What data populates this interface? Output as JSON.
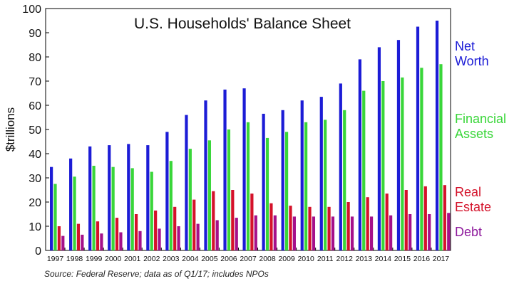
{
  "chart_data": {
    "type": "bar",
    "title": "U.S. Households' Balance Sheet",
    "ylabel": "$trillions",
    "ylim": [
      0,
      100
    ],
    "yticks": [
      0,
      10,
      20,
      30,
      40,
      50,
      60,
      70,
      80,
      90,
      100
    ],
    "grid": false,
    "legend": "right",
    "categories": [
      "1997",
      "1998",
      "1999",
      "2000",
      "2001",
      "2002",
      "2003",
      "2004",
      "2005",
      "2006",
      "2007",
      "2008",
      "2009",
      "2010",
      "2011",
      "2012",
      "2013",
      "2014",
      "2015",
      "2016",
      "2017"
    ],
    "series": [
      {
        "name": "Net Worth",
        "color": "#1c1cd6",
        "values": [
          34.5,
          38,
          43,
          43.5,
          44,
          43.5,
          49,
          56,
          62,
          66.5,
          67,
          56.5,
          58,
          62,
          63.5,
          69,
          79,
          84,
          87,
          92.5,
          95
        ]
      },
      {
        "name": "Financial Assets",
        "color": "#39d639",
        "values": [
          27.5,
          30.5,
          35,
          34.5,
          34,
          32.5,
          37,
          42,
          45.5,
          50,
          53,
          46.5,
          49,
          53,
          54,
          58,
          66,
          70,
          71.5,
          75.5,
          77
        ]
      },
      {
        "name": "Real Estate",
        "color": "#d4122a",
        "values": [
          10,
          11,
          12,
          13.5,
          15,
          16.5,
          18,
          21,
          24.5,
          25,
          23.5,
          19.5,
          18.5,
          18,
          18,
          20,
          22,
          23.5,
          25,
          26.5,
          27
        ]
      },
      {
        "name": "Debt",
        "color": "#a5108a",
        "values": [
          6,
          6.5,
          7,
          7.5,
          8,
          9,
          10,
          11,
          12.5,
          13.5,
          14.5,
          14.5,
          14,
          14,
          14,
          14,
          14,
          14.5,
          15,
          15,
          15.5
        ]
      }
    ],
    "legend_entries": [
      {
        "label": "Net Worth",
        "lines": [
          "Net",
          "Worth"
        ],
        "color": "#1c1cd6"
      },
      {
        "label": "Financial Assets",
        "lines": [
          "Financial",
          "Assets"
        ],
        "color": "#39d639"
      },
      {
        "label": "Real Estate",
        "lines": [
          "Real",
          "Estate"
        ],
        "color": "#d4122a"
      },
      {
        "label": "Debt",
        "lines": [
          "Debt"
        ],
        "color": "#8e1a9c"
      }
    ],
    "source": "Source: Federal Reserve; data as of Q1/17; includes NPOs"
  }
}
